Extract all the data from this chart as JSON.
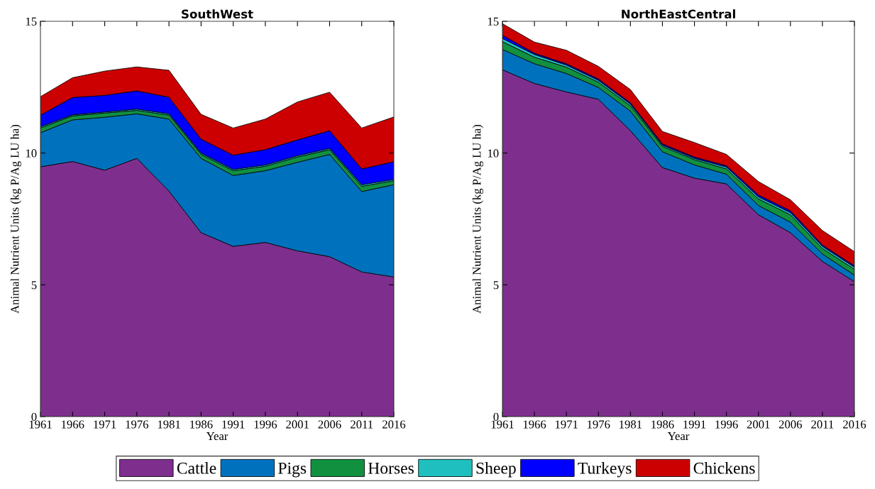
{
  "chart_data": [
    {
      "type": "area",
      "stacked": true,
      "title": "SouthWest",
      "xlabel": "Year",
      "ylabel": "Animal Nutrient Units (kg P/Ag LU ha)",
      "x": [
        1961,
        1966,
        1971,
        1976,
        1981,
        1986,
        1991,
        1996,
        2001,
        2006,
        2011,
        2016
      ],
      "xlim": [
        1961,
        2016
      ],
      "xticks": [
        1961,
        1966,
        1971,
        1976,
        1981,
        1986,
        1991,
        1996,
        2001,
        2006,
        2011,
        2016
      ],
      "ylim": [
        0,
        15
      ],
      "yticks": [
        0,
        5,
        10,
        15
      ],
      "grid": false,
      "legend": "bottom",
      "series": [
        {
          "name": "Cattle",
          "color": "#7e2f8e",
          "values": [
            9.48,
            9.68,
            9.35,
            9.8,
            8.56,
            6.98,
            6.46,
            6.61,
            6.29,
            6.07,
            5.49,
            5.3
          ]
        },
        {
          "name": "Pigs",
          "color": "#0072bd",
          "values": [
            1.29,
            1.58,
            2.01,
            1.69,
            2.73,
            2.82,
            2.69,
            2.72,
            3.36,
            3.88,
            3.05,
            3.5
          ]
        },
        {
          "name": "Horses",
          "color": "#119040",
          "values": [
            0.18,
            0.15,
            0.16,
            0.13,
            0.15,
            0.15,
            0.18,
            0.17,
            0.2,
            0.18,
            0.2,
            0.15
          ]
        },
        {
          "name": "Sheep",
          "color": "#1fbfbf",
          "values": [
            0.05,
            0.04,
            0.04,
            0.05,
            0.05,
            0.05,
            0.05,
            0.05,
            0.05,
            0.05,
            0.06,
            0.05
          ]
        },
        {
          "name": "Turkeys",
          "color": "#0000ff",
          "values": [
            0.44,
            0.66,
            0.63,
            0.69,
            0.63,
            0.53,
            0.54,
            0.58,
            0.6,
            0.67,
            0.6,
            0.67
          ]
        },
        {
          "name": "Chickens",
          "color": "#cc0000",
          "values": [
            0.7,
            0.75,
            0.92,
            0.91,
            1.02,
            0.94,
            1.03,
            1.16,
            1.44,
            1.46,
            1.55,
            1.7
          ]
        }
      ]
    },
    {
      "type": "area",
      "stacked": true,
      "title": "NorthEastCentral",
      "xlabel": "Year",
      "ylabel": "Animal Nutrient Units (kg P/Ag LU ha)",
      "x": [
        1961,
        1966,
        1971,
        1976,
        1981,
        1986,
        1991,
        1996,
        2001,
        2006,
        2011,
        2016
      ],
      "xlim": [
        1961,
        2016
      ],
      "xticks": [
        1961,
        1966,
        1971,
        1976,
        1981,
        1986,
        1991,
        1996,
        2001,
        2006,
        2011,
        2016
      ],
      "ylim": [
        0,
        15
      ],
      "yticks": [
        0,
        5,
        10,
        15
      ],
      "grid": false,
      "series": [
        {
          "color": "#7e2f8e",
          "values": [
            13.16,
            12.64,
            12.32,
            12.04,
            10.85,
            9.45,
            9.05,
            8.83,
            7.66,
            6.98,
            5.89,
            5.12
          ]
        },
        {
          "color": "#0072bd",
          "values": [
            0.77,
            0.75,
            0.7,
            0.45,
            0.74,
            0.6,
            0.5,
            0.37,
            0.35,
            0.4,
            0.28,
            0.25
          ]
        },
        {
          "color": "#119040",
          "values": [
            0.3,
            0.25,
            0.24,
            0.2,
            0.2,
            0.2,
            0.2,
            0.2,
            0.25,
            0.28,
            0.21,
            0.22
          ]
        },
        {
          "color": "#1fbfbf",
          "values": [
            0.12,
            0.1,
            0.08,
            0.07,
            0.07,
            0.05,
            0.05,
            0.07,
            0.08,
            0.08,
            0.08,
            0.08
          ]
        },
        {
          "color": "#0000ff",
          "values": [
            0.12,
            0.05,
            0.05,
            0.05,
            0.05,
            0.05,
            0.05,
            0.05,
            0.07,
            0.07,
            0.05,
            0.05
          ]
        },
        {
          "color": "#cc0000",
          "values": [
            0.44,
            0.42,
            0.51,
            0.48,
            0.5,
            0.47,
            0.55,
            0.43,
            0.51,
            0.42,
            0.55,
            0.54
          ]
        }
      ]
    }
  ]
}
